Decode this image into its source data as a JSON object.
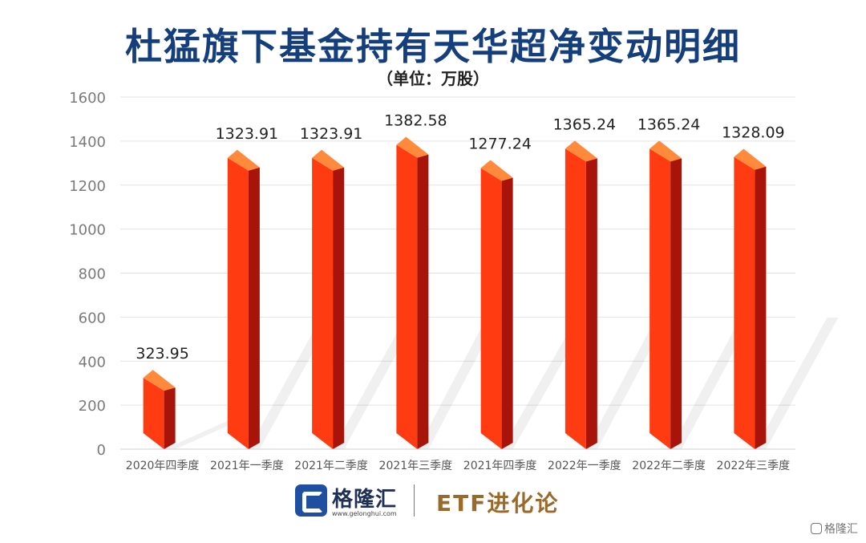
{
  "chart_data": {
    "type": "bar",
    "title": "杜猛旗下基金持有天华超净变动明细",
    "subtitle": "（单位：万股）",
    "categories": [
      "2020年四季度",
      "2021年一季度",
      "2021年二季度",
      "2021年三季度",
      "2021年四季度",
      "2022年一季度",
      "2022年二季度",
      "2022年三季度"
    ],
    "values": [
      323.95,
      1323.91,
      1323.91,
      1382.58,
      1277.24,
      1365.24,
      1365.24,
      1328.09
    ],
    "value_labels": [
      "323.95",
      "1323.91",
      "1323.91",
      "1382.58",
      "1277.24",
      "1365.24",
      "1365.24",
      "1328.09"
    ],
    "yticks": [
      "0",
      "200",
      "400",
      "600",
      "800",
      "1000",
      "1200",
      "1400",
      "1600"
    ],
    "ylim": [
      0,
      1600
    ],
    "grid": true,
    "colors": {
      "bar_front": "#ff3b12",
      "bar_side": "#a8140a",
      "bar_top": "#ff8a3c",
      "title": "#153f7c"
    }
  },
  "footer": {
    "brand_name": "格隆汇",
    "brand_url": "www.gelonghui.com",
    "partner": "ETF进化论",
    "watermark": "格隆汇",
    "logo_icon": "gelonghui-logo-icon"
  }
}
